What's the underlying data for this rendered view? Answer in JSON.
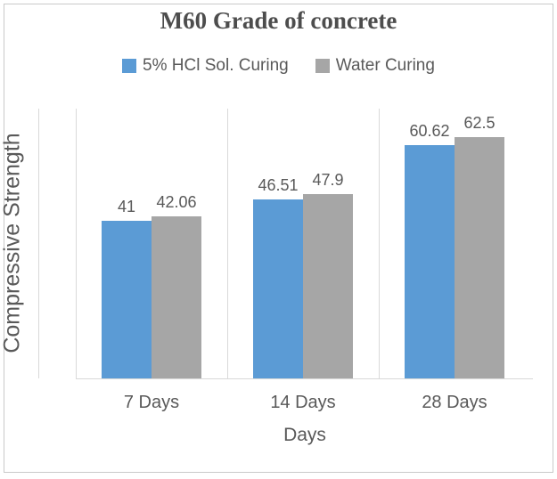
{
  "window": {
    "background": "#ffffff",
    "border_color": "#c9c9c9"
  },
  "chart_data": {
    "type": "bar",
    "title": "M60 Grade of concrete",
    "categories": [
      "7 Days",
      "14 Days",
      "28 Days"
    ],
    "series": [
      {
        "name": "5% HCl Sol. Curing",
        "color": "#5B9BD5",
        "values": [
          41,
          46.51,
          60.62
        ],
        "labels": [
          "41",
          "46.51",
          "60.62"
        ]
      },
      {
        "name": "Water Curing",
        "color": "#A6A6A6",
        "values": [
          42.06,
          47.9,
          62.5
        ],
        "labels": [
          "42.06",
          "47.9",
          "62.5"
        ]
      }
    ],
    "xlabel": "Days",
    "ylabel": "Compressive Strength",
    "ylim": [
      0,
      70
    ],
    "grid": "vertical category-boundary gridlines, no horizontal gridlines",
    "legend_position": "top",
    "data_labels": true,
    "y_tick_labels_visible": false
  },
  "colors": {
    "text": "#595959",
    "title_text": "#4d4d4d",
    "gridline": "#d9d9d9",
    "axis_line": "#d9d9d9"
  }
}
